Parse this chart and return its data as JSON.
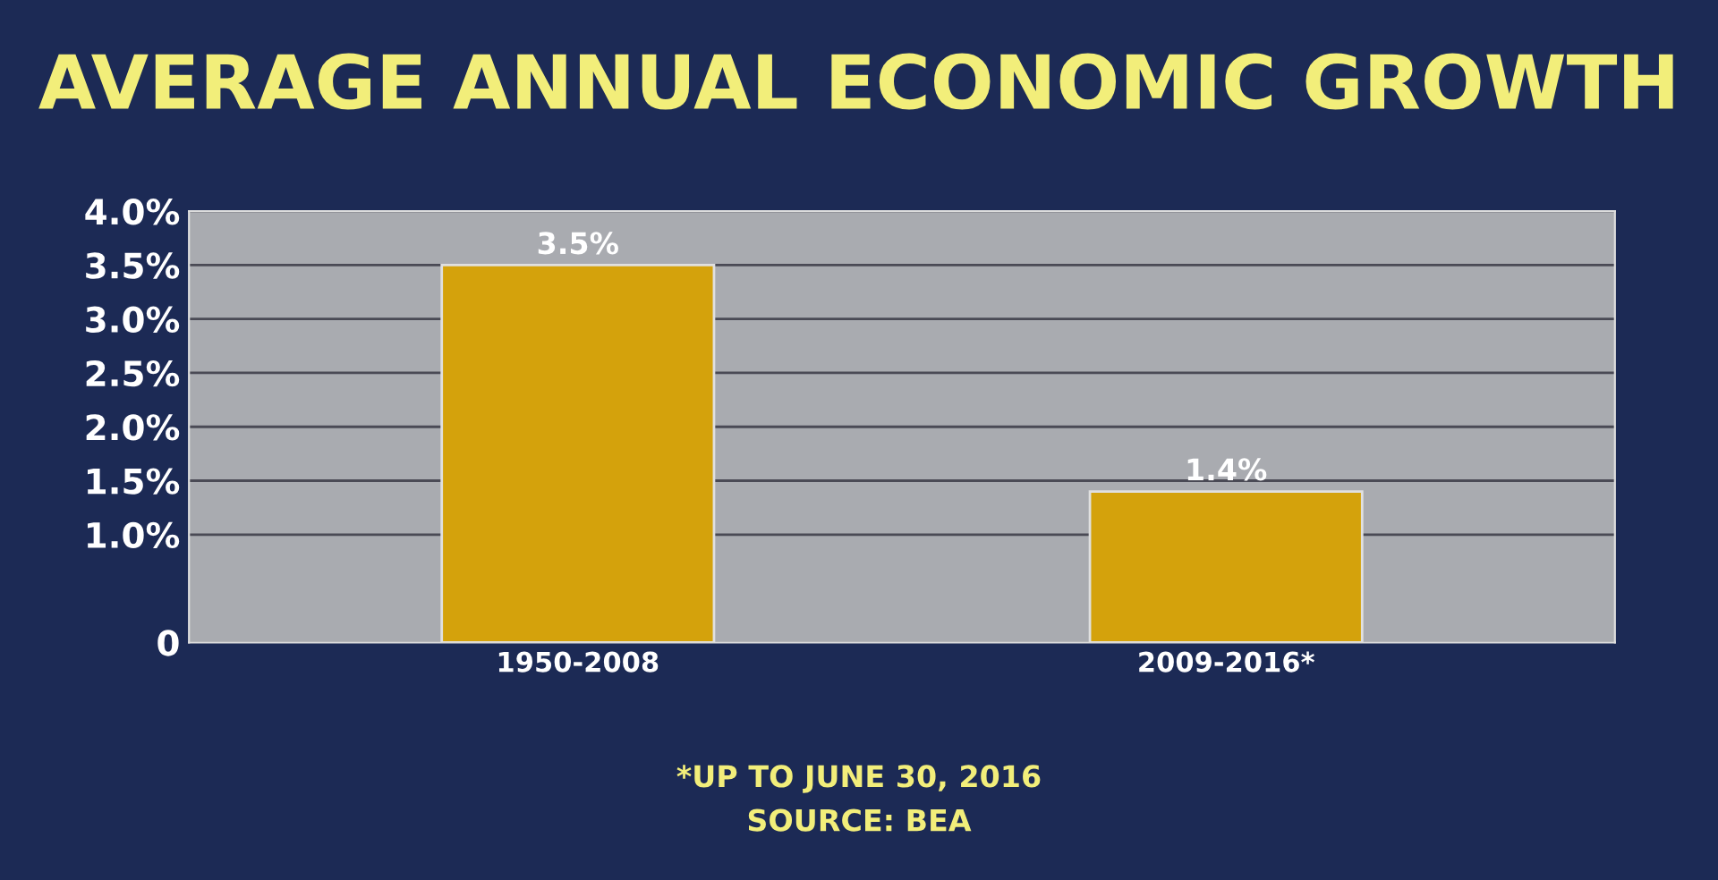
{
  "chart_data": {
    "type": "bar",
    "title": "AVERAGE ANNUAL ECONOMIC GROWTH",
    "categories": [
      "1950-2008",
      "2009-2016*"
    ],
    "values": [
      3.5,
      1.4
    ],
    "value_labels": [
      "3.5%",
      "1.4%"
    ],
    "color": "#d4a20c",
    "ylim": [
      0,
      4.0
    ],
    "yticks": [
      0,
      {
        "value": 1.0,
        "label": "1.0%"
      },
      {
        "value": 1.5,
        "label": "1.5%"
      },
      {
        "value": 2.0,
        "label": "2.0%"
      },
      {
        "value": 2.5,
        "label": "2.5%"
      },
      {
        "value": 3.0,
        "label": "3.0%"
      },
      {
        "value": 3.5,
        "label": "3.5%"
      },
      {
        "value": 4.0,
        "label": "4.0%"
      }
    ],
    "grid": "y",
    "annotations": [
      "*UP TO JUNE 30, 2016",
      "SOURCE: BEA"
    ]
  }
}
